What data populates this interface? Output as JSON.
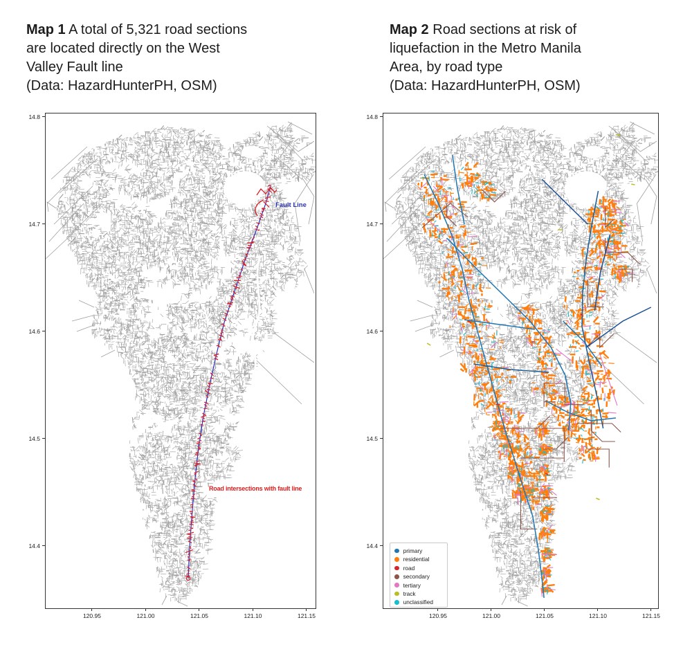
{
  "figure": {
    "background": "#ffffff"
  },
  "map1": {
    "title": {
      "bold": "Map 1",
      "line1_rest": "A total of 5,321 road sections",
      "lines": [
        "are located directly on the West",
        "Valley Fault line",
        "(Data: HazardHunterPH, OSM)"
      ]
    },
    "axes": {
      "x_ticks": [
        "120.95",
        "121.00",
        "121.05",
        "121.10",
        "121.15"
      ],
      "y_ticks": [
        "14.8",
        "14.7",
        "14.6",
        "14.5",
        "14.4"
      ]
    },
    "annotations": {
      "fault_line": "Fault Line",
      "intersections": "Road intersections with fault line"
    },
    "colors": {
      "roads": "#a9a9a9",
      "fault_line": "#2b2fc0",
      "intersections": "#d8202a",
      "fault_label": "#2b35b8",
      "intersections_label": "#dd1c1c"
    }
  },
  "map2": {
    "title": {
      "bold": "Map 2",
      "line1_rest": "Road sections at risk of",
      "lines": [
        "liquefaction in the Metro Manila",
        "Area, by road type",
        "(Data: HazardHunterPH, OSM)"
      ]
    },
    "axes": {
      "x_ticks": [
        "120.95",
        "121.00",
        "121.05",
        "121.10",
        "121.15"
      ],
      "y_ticks": [
        "14.8",
        "14.7",
        "14.6",
        "14.5",
        "14.4"
      ]
    },
    "legend": {
      "items": [
        {
          "label": "primary",
          "color": "#1f77b4"
        },
        {
          "label": "residential",
          "color": "#ff7f0e"
        },
        {
          "label": "road",
          "color": "#d62728"
        },
        {
          "label": "secondary",
          "color": "#8c564b"
        },
        {
          "label": "tertiary",
          "color": "#e377c2"
        },
        {
          "label": "track",
          "color": "#bcbd22"
        },
        {
          "label": "unclassified",
          "color": "#17becf"
        }
      ]
    }
  }
}
